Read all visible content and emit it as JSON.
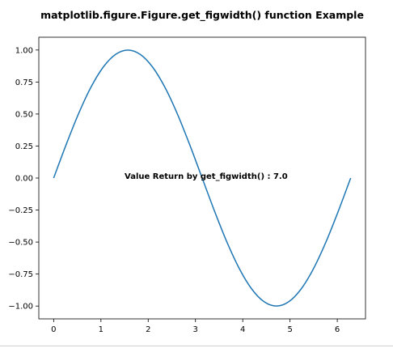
{
  "chart_data": {
    "type": "line",
    "title": "matplotlib.figure.Figure.get_figwidth() function Example",
    "xlabel": "",
    "ylabel": "",
    "xlim": [
      -0.314,
      6.597
    ],
    "ylim": [
      -1.1,
      1.1
    ],
    "x_ticks": [
      0,
      1,
      2,
      3,
      4,
      5,
      6
    ],
    "x_tick_labels": [
      "0",
      "1",
      "2",
      "3",
      "4",
      "5",
      "6"
    ],
    "y_ticks": [
      1.0,
      0.75,
      0.5,
      0.25,
      0.0,
      -0.25,
      -0.5,
      -0.75,
      -1.0
    ],
    "y_tick_labels": [
      "1.00",
      "0.75",
      "0.50",
      "0.25",
      "0.00",
      "−0.25",
      "−0.50",
      "−0.75",
      "−1.00"
    ],
    "grid": false,
    "series": [
      {
        "color": "#1f77b4",
        "x": [
          0.0,
          0.2618,
          0.5236,
          0.7854,
          1.0472,
          1.309,
          1.5708,
          1.8326,
          2.0944,
          2.3562,
          2.618,
          2.8798,
          3.1416,
          3.4034,
          3.6652,
          3.927,
          4.1888,
          4.4506,
          4.7124,
          4.9742,
          5.236,
          5.4978,
          5.7596,
          6.0214,
          6.2832
        ],
        "y": [
          0.0,
          0.2588,
          0.5,
          0.7071,
          0.866,
          0.9659,
          1.0,
          0.9659,
          0.866,
          0.7071,
          0.5,
          0.2588,
          0.0,
          -0.2588,
          -0.5,
          -0.7071,
          -0.866,
          -0.9659,
          -1.0,
          -0.9659,
          -0.866,
          -0.7071,
          -0.5,
          -0.2588,
          0.0
        ]
      }
    ],
    "annotation": {
      "text": "Value Return by get_figwidth() : 7.0",
      "x": 1.5,
      "y": 0.0
    }
  }
}
